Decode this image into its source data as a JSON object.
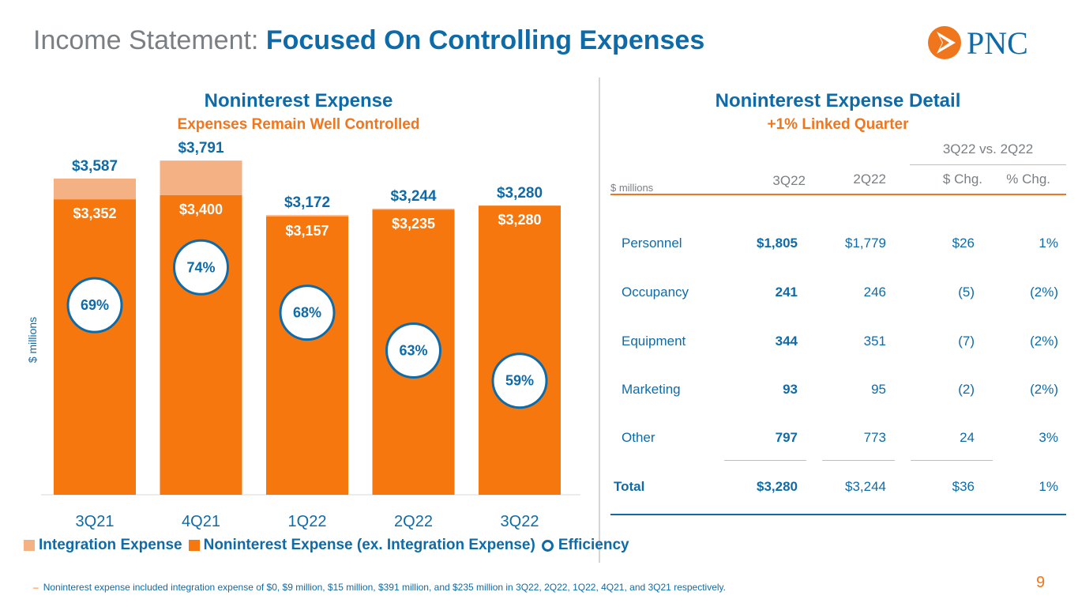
{
  "header": {
    "title_prefix": "Income Statement:",
    "title_main": "Focused On Controlling Expenses",
    "logo_text": "PNC"
  },
  "left_panel": {
    "title": "Noninterest Expense",
    "subtitle": "Expenses Remain Well Controlled",
    "y_axis_label": "$ millions"
  },
  "chart_data": {
    "type": "bar",
    "stacked": true,
    "title": "Noninterest Expense",
    "subtitle": "Expenses Remain Well Controlled",
    "ylabel": "$ millions",
    "ylim": [
      0,
      3900
    ],
    "categories": [
      "3Q21",
      "4Q21",
      "1Q22",
      "2Q22",
      "3Q22"
    ],
    "series": [
      {
        "name": "Noninterest Expense (ex. Integration Expense)",
        "color": "#f7770f",
        "values": [
          3352,
          3400,
          3157,
          3235,
          3280
        ],
        "labels": [
          "$3,352",
          "$3,400",
          "$3,157",
          "$3,235",
          "$3,280"
        ]
      },
      {
        "name": "Integration Expense",
        "color": "#f4b183",
        "values": [
          235,
          391,
          15,
          9,
          0
        ]
      }
    ],
    "totals": [
      3587,
      3791,
      3172,
      3244,
      3280
    ],
    "total_labels": [
      "$3,587",
      "$3,791",
      "$3,172",
      "$3,244",
      "$3,280"
    ],
    "efficiency": {
      "name": "Efficiency",
      "values": [
        69,
        74,
        68,
        63,
        59
      ],
      "labels": [
        "69%",
        "74%",
        "68%",
        "63%",
        "59%"
      ]
    }
  },
  "legend": {
    "integration": "Integration Expense",
    "noninterest": "Noninterest Expense (ex. Integration Expense)",
    "efficiency": "Efficiency"
  },
  "right_panel": {
    "title": "Noninterest Expense Detail",
    "subtitle": "+1% Linked Quarter",
    "group_header": "3Q22 vs. 2Q22",
    "units": "$ millions",
    "columns": [
      "3Q22",
      "2Q22",
      "$ Chg.",
      "% Chg."
    ],
    "rows": [
      {
        "label": "Personnel",
        "q3": "$1,805",
        "q2": "$1,779",
        "chg": "$26",
        "pct": "1%"
      },
      {
        "label": "Occupancy",
        "q3": "241",
        "q2": "246",
        "chg": "(5)",
        "pct": "(2%)"
      },
      {
        "label": "Equipment",
        "q3": "344",
        "q2": "351",
        "chg": "(7)",
        "pct": "(2%)"
      },
      {
        "label": "Marketing",
        "q3": "93",
        "q2": "95",
        "chg": "(2)",
        "pct": "(2%)"
      },
      {
        "label": "Other",
        "q3": "797",
        "q2": "773",
        "chg": "24",
        "pct": "3%"
      }
    ],
    "total": {
      "label": "Total",
      "q3": "$3,280",
      "q2": "$3,244",
      "chg": "$36",
      "pct": "1%"
    }
  },
  "footnote": "Noninterest expense included integration expense of $0, $9 million, $15 million, $391 million, and $235 million in 3Q22, 2Q22, 1Q22, 4Q21, and 3Q21 respectively.",
  "page_number": "9",
  "colors": {
    "blue": "#0f6ba8",
    "orange": "#f7770f",
    "light_orange": "#f4b183",
    "gray": "#7a7f84"
  }
}
